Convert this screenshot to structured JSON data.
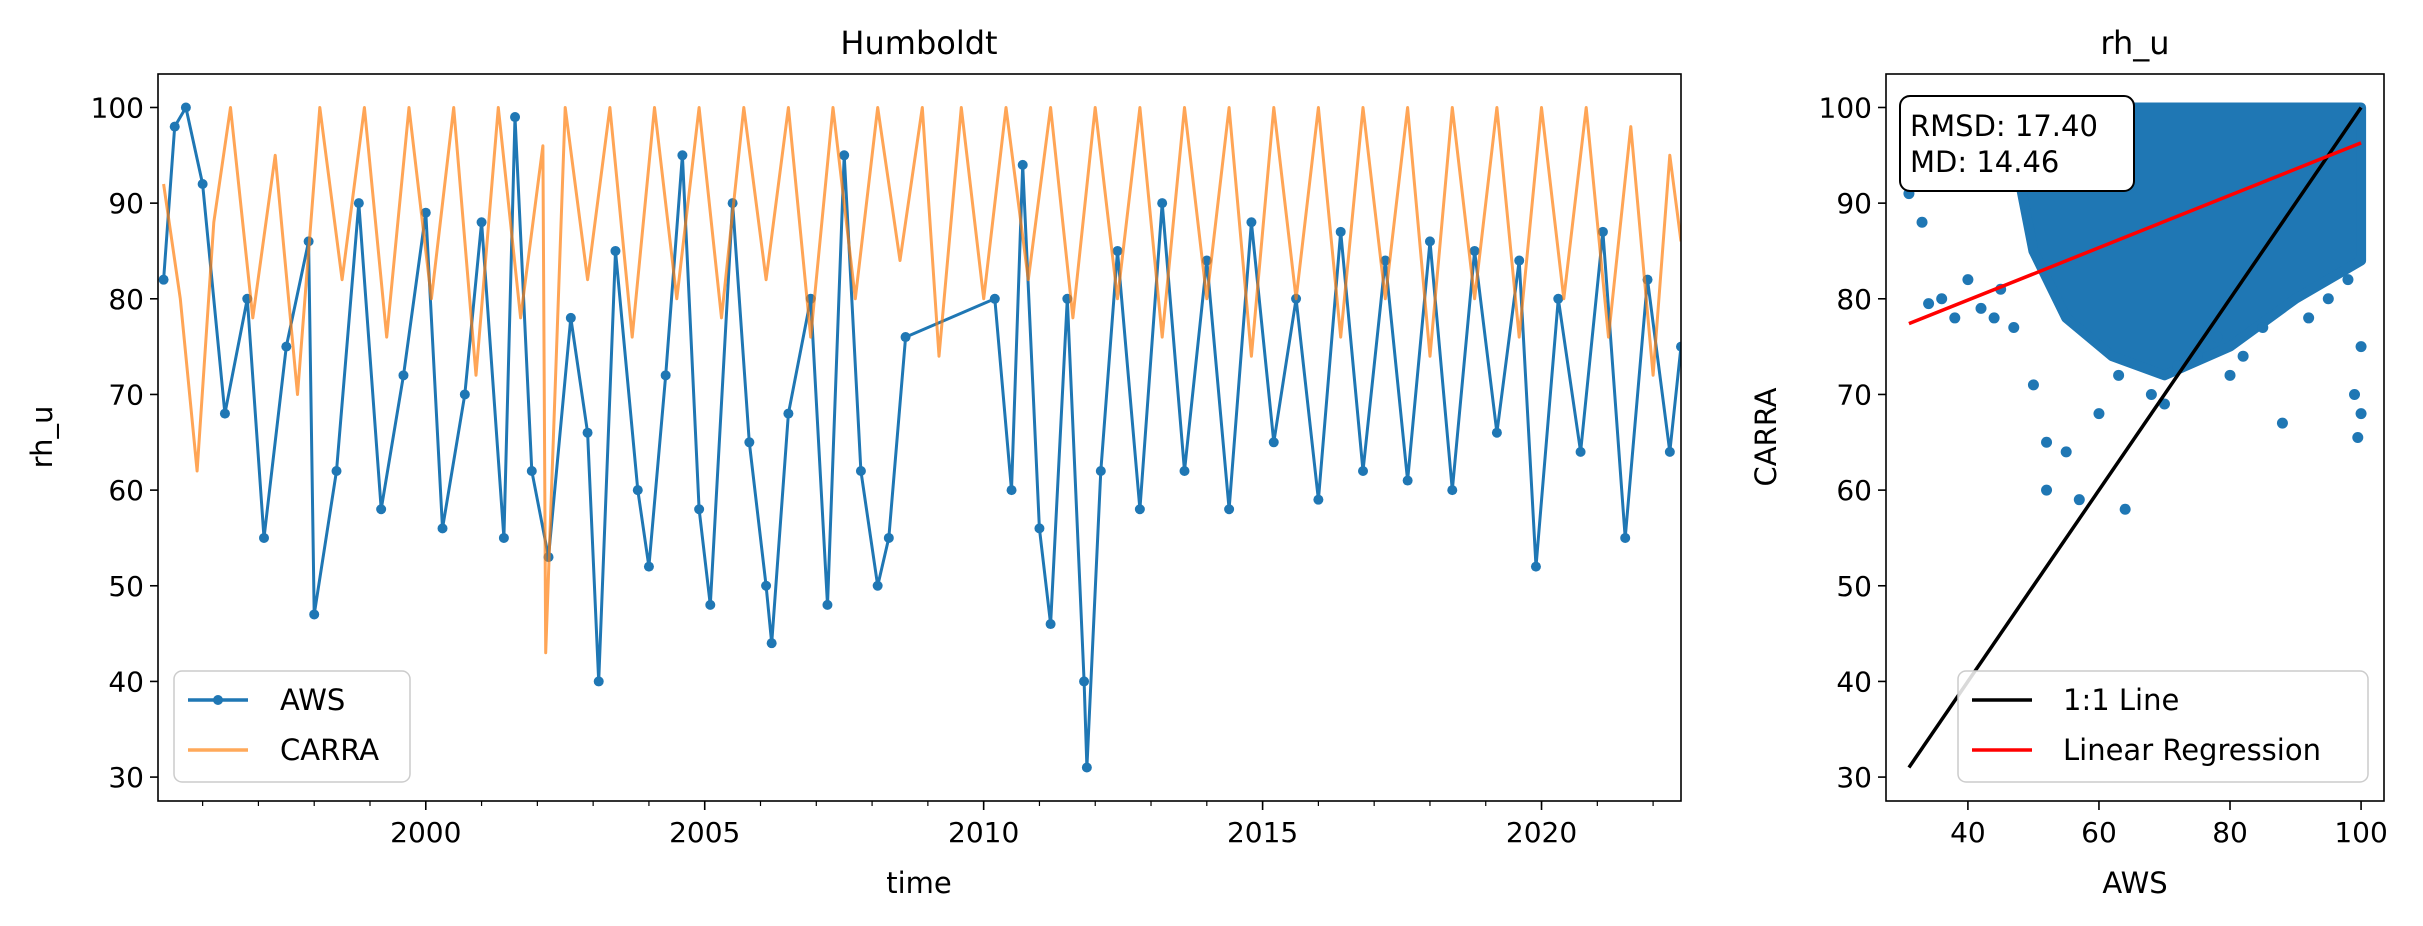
{
  "chart_data": [
    {
      "type": "line",
      "title": "Humboldt",
      "xlabel": "time",
      "ylabel": "rh_u",
      "x_range": [
        1995.2,
        2022.5
      ],
      "ylim": [
        27.5,
        103.5
      ],
      "x_ticks": [
        2000,
        2005,
        2010,
        2015,
        2020
      ],
      "y_ticks": [
        30,
        40,
        50,
        60,
        70,
        80,
        90,
        100
      ],
      "grid": false,
      "legend_position": "lower-left",
      "series": [
        {
          "name": "AWS",
          "color": "#1f77b4",
          "marker": "circle",
          "points": [
            [
              1995.3,
              82
            ],
            [
              1995.5,
              98
            ],
            [
              1995.7,
              100
            ],
            [
              1996.0,
              92
            ],
            [
              1996.4,
              68
            ],
            [
              1996.8,
              80
            ],
            [
              1997.1,
              55
            ],
            [
              1997.5,
              75
            ],
            [
              1997.9,
              86
            ],
            [
              1998.0,
              47
            ],
            [
              1998.4,
              62
            ],
            [
              1998.8,
              90
            ],
            [
              1999.2,
              58
            ],
            [
              1999.6,
              72
            ],
            [
              2000.0,
              89
            ],
            [
              2000.3,
              56
            ],
            [
              2000.7,
              70
            ],
            [
              2001.0,
              88
            ],
            [
              2001.4,
              55
            ],
            [
              2001.6,
              99
            ],
            [
              2001.9,
              62
            ],
            [
              2002.2,
              53
            ],
            [
              2002.6,
              78
            ],
            [
              2002.9,
              66
            ],
            [
              2003.1,
              40
            ],
            [
              2003.4,
              85
            ],
            [
              2003.8,
              60
            ],
            [
              2004.0,
              52
            ],
            [
              2004.3,
              72
            ],
            [
              2004.6,
              95
            ],
            [
              2004.9,
              58
            ],
            [
              2005.1,
              48
            ],
            [
              2005.5,
              90
            ],
            [
              2005.8,
              65
            ],
            [
              2006.1,
              50
            ],
            [
              2006.2,
              44
            ],
            [
              2006.5,
              68
            ],
            [
              2006.9,
              80
            ],
            [
              2007.2,
              48
            ],
            [
              2007.5,
              95
            ],
            [
              2007.8,
              62
            ],
            [
              2008.1,
              50
            ],
            [
              2008.3,
              55
            ],
            [
              2008.6,
              76
            ],
            [
              2010.2,
              80
            ],
            [
              2010.5,
              60
            ],
            [
              2010.7,
              94
            ],
            [
              2011.0,
              56
            ],
            [
              2011.2,
              46
            ],
            [
              2011.5,
              80
            ],
            [
              2011.8,
              40
            ],
            [
              2011.85,
              31
            ],
            [
              2012.1,
              62
            ],
            [
              2012.4,
              85
            ],
            [
              2012.8,
              58
            ],
            [
              2013.2,
              90
            ],
            [
              2013.6,
              62
            ],
            [
              2014.0,
              84
            ],
            [
              2014.4,
              58
            ],
            [
              2014.8,
              88
            ],
            [
              2015.2,
              65
            ],
            [
              2015.6,
              80
            ],
            [
              2016.0,
              59
            ],
            [
              2016.4,
              87
            ],
            [
              2016.8,
              62
            ],
            [
              2017.2,
              84
            ],
            [
              2017.6,
              61
            ],
            [
              2018.0,
              86
            ],
            [
              2018.4,
              60
            ],
            [
              2018.8,
              85
            ],
            [
              2019.2,
              66
            ],
            [
              2019.6,
              84
            ],
            [
              2019.9,
              52
            ],
            [
              2020.3,
              80
            ],
            [
              2020.7,
              64
            ],
            [
              2021.1,
              87
            ],
            [
              2021.5,
              55
            ],
            [
              2021.9,
              82
            ],
            [
              2022.3,
              64
            ],
            [
              2022.5,
              75
            ]
          ]
        },
        {
          "name": "CARRA",
          "color": "#ff7f0e",
          "points": [
            [
              1995.3,
              92
            ],
            [
              1995.6,
              80
            ],
            [
              1995.9,
              62
            ],
            [
              1996.2,
              88
            ],
            [
              1996.5,
              100
            ],
            [
              1996.9,
              78
            ],
            [
              1997.3,
              95
            ],
            [
              1997.7,
              70
            ],
            [
              1998.1,
              100
            ],
            [
              1998.5,
              82
            ],
            [
              1998.9,
              100
            ],
            [
              1999.3,
              76
            ],
            [
              1999.7,
              100
            ],
            [
              2000.1,
              80
            ],
            [
              2000.5,
              100
            ],
            [
              2000.9,
              72
            ],
            [
              2001.3,
              100
            ],
            [
              2001.7,
              78
            ],
            [
              2002.1,
              96
            ],
            [
              2002.15,
              43
            ],
            [
              2002.5,
              100
            ],
            [
              2002.9,
              82
            ],
            [
              2003.3,
              100
            ],
            [
              2003.7,
              76
            ],
            [
              2004.1,
              100
            ],
            [
              2004.5,
              80
            ],
            [
              2004.9,
              100
            ],
            [
              2005.3,
              78
            ],
            [
              2005.7,
              100
            ],
            [
              2006.1,
              82
            ],
            [
              2006.5,
              100
            ],
            [
              2006.9,
              76
            ],
            [
              2007.3,
              100
            ],
            [
              2007.7,
              80
            ],
            [
              2008.1,
              100
            ],
            [
              2008.5,
              84
            ],
            [
              2008.9,
              100
            ],
            [
              2009.2,
              74
            ],
            [
              2009.6,
              100
            ],
            [
              2010.0,
              80
            ],
            [
              2010.4,
              100
            ],
            [
              2010.8,
              82
            ],
            [
              2011.2,
              100
            ],
            [
              2011.6,
              78
            ],
            [
              2012.0,
              100
            ],
            [
              2012.4,
              80
            ],
            [
              2012.8,
              100
            ],
            [
              2013.2,
              76
            ],
            [
              2013.6,
              100
            ],
            [
              2014.0,
              80
            ],
            [
              2014.4,
              100
            ],
            [
              2014.8,
              74
            ],
            [
              2015.2,
              100
            ],
            [
              2015.6,
              80
            ],
            [
              2016.0,
              100
            ],
            [
              2016.4,
              76
            ],
            [
              2016.8,
              100
            ],
            [
              2017.2,
              80
            ],
            [
              2017.6,
              100
            ],
            [
              2018.0,
              74
            ],
            [
              2018.4,
              100
            ],
            [
              2018.8,
              80
            ],
            [
              2019.2,
              100
            ],
            [
              2019.6,
              76
            ],
            [
              2020.0,
              100
            ],
            [
              2020.4,
              80
            ],
            [
              2020.8,
              100
            ],
            [
              2021.2,
              76
            ],
            [
              2021.6,
              98
            ],
            [
              2022.0,
              72
            ],
            [
              2022.3,
              95
            ],
            [
              2022.5,
              86
            ]
          ]
        }
      ]
    },
    {
      "type": "scatter",
      "title": "rh_u",
      "xlabel": "AWS",
      "ylabel": "CARRA",
      "xlim": [
        27.5,
        103.5
      ],
      "ylim": [
        27.5,
        103.5
      ],
      "x_ticks": [
        40,
        60,
        80,
        100
      ],
      "y_ticks": [
        30,
        40,
        50,
        60,
        70,
        80,
        90,
        100
      ],
      "grid": false,
      "legend_position": "lower-right",
      "stats": [
        "RMSD: 17.40",
        "MD: 14.46"
      ],
      "scatter_color": "#1f77b4",
      "points": [
        [
          31,
          91
        ],
        [
          33,
          88
        ],
        [
          34,
          79.5
        ],
        [
          36,
          80
        ],
        [
          38,
          78
        ],
        [
          40,
          82
        ],
        [
          42,
          79
        ],
        [
          44,
          78
        ],
        [
          45,
          81
        ],
        [
          47,
          77
        ],
        [
          50,
          71
        ],
        [
          52,
          65
        ],
        [
          52,
          60
        ],
        [
          55,
          64
        ],
        [
          57,
          59
        ],
        [
          60,
          68
        ],
        [
          63,
          72
        ],
        [
          64,
          58
        ],
        [
          68,
          70
        ],
        [
          70,
          69
        ],
        [
          72,
          73
        ],
        [
          75,
          74
        ],
        [
          78,
          76
        ],
        [
          80,
          72
        ],
        [
          82,
          74
        ],
        [
          85,
          77
        ],
        [
          88,
          67
        ],
        [
          92,
          78
        ],
        [
          95,
          80
        ],
        [
          98,
          82
        ],
        [
          99,
          70
        ],
        [
          99.5,
          65.5
        ],
        [
          100,
          75
        ],
        [
          100,
          68
        ]
      ],
      "lines": [
        {
          "name": "1:1 Line",
          "color": "#000000",
          "start": [
            31,
            31
          ],
          "end": [
            100,
            100
          ]
        },
        {
          "name": "Linear Regression",
          "color": "#ff0000",
          "start": [
            31,
            77.4
          ],
          "end": [
            100,
            96.3
          ]
        }
      ]
    }
  ]
}
